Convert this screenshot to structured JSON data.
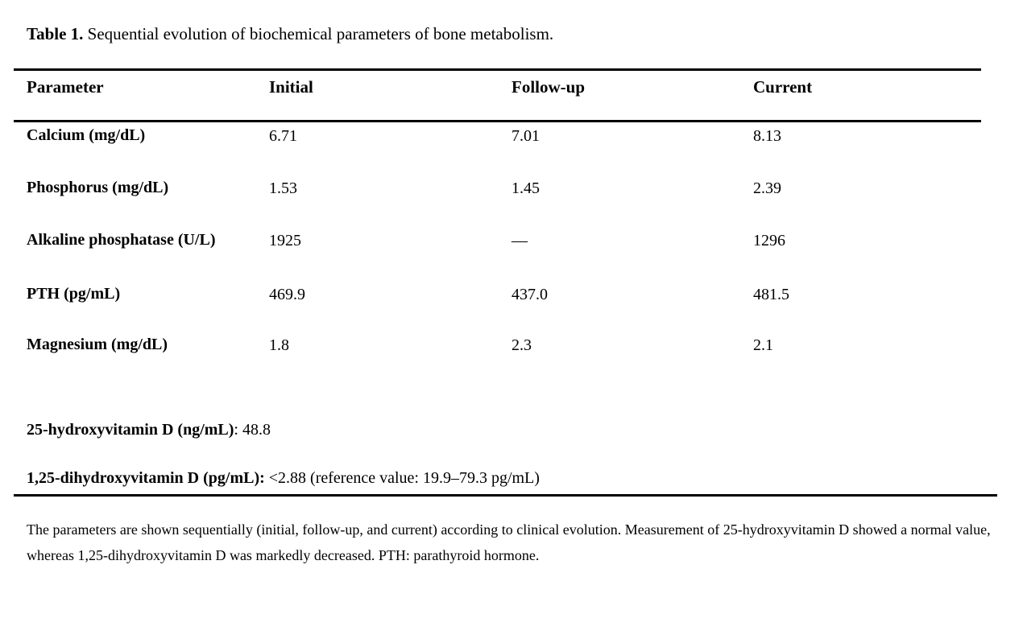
{
  "title": {
    "label": "Table 1.",
    "text": " Sequential evolution of biochemical parameters of bone metabolism."
  },
  "table": {
    "columns": [
      "Parameter",
      "Initial",
      "Follow-up",
      "Current"
    ],
    "rows": [
      {
        "parameter": "Calcium (mg/dL)",
        "initial": "6.71",
        "follow_up": "7.01",
        "current": "8.13"
      },
      {
        "parameter": "Phosphorus (mg/dL)",
        "initial": "1.53",
        "follow_up": "1.45",
        "current": "2.39"
      },
      {
        "parameter": "Alkaline phosphatase (U/L)",
        "initial": "1925",
        "follow_up": "—",
        "current": "1296"
      },
      {
        "parameter": "PTH (pg/mL)",
        "initial": "469.9",
        "follow_up": "437.0",
        "current": "481.5"
      },
      {
        "parameter": "Magnesium (mg/dL)",
        "initial": "1.8",
        "follow_up": "2.3",
        "current": "2.1"
      }
    ]
  },
  "extra_measurements": [
    {
      "label": "25-hydroxyvitamin D (ng/mL)",
      "value": ": 48.8"
    },
    {
      "label": "1,25-dihydroxyvitamin D (pg/mL):",
      "value": " <2.88 (reference value: 19.9–79.3 pg/mL)"
    }
  ],
  "footnote": "The parameters are shown sequentially (initial, follow-up, and current) according to clinical evolution. Measurement of 25-hydroxyvitamin D showed a normal value, whereas 1,25-dihydroxyvitamin D was markedly decreased. PTH: parathyroid hormone.",
  "colors": {
    "text": "#000000",
    "background": "#ffffff",
    "rule": "#000000"
  }
}
